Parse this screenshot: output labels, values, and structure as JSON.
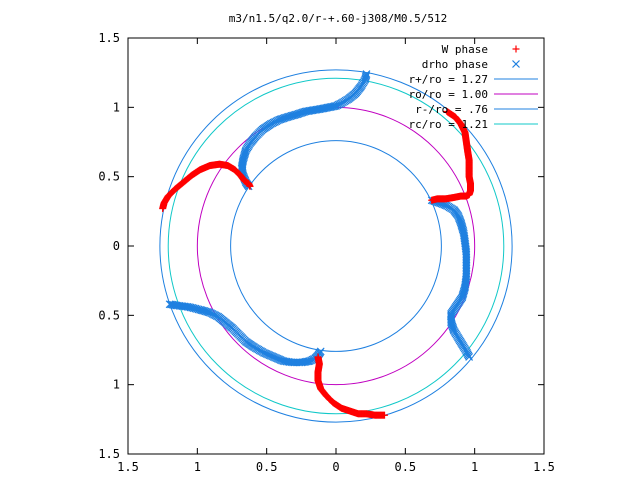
{
  "chart_data": {
    "type": "scatter",
    "title": "m3/n1.5/q2.0/r-+.60-j308/M0.5/512",
    "xlabel": "",
    "ylabel": "",
    "xlim": [
      -1.5,
      1.5
    ],
    "ylim": [
      -1.5,
      1.5
    ],
    "x_tick_labels": [
      "1.5",
      "1",
      "0.5",
      "0",
      "0.5",
      "1",
      "1.5"
    ],
    "y_tick_labels": [
      "1.5",
      "1",
      "0.5",
      "0",
      "0.5",
      "1",
      "1.5"
    ],
    "grid": false,
    "legend_position": "top-right",
    "series": [
      {
        "name": "W phase",
        "marker": "+",
        "color": "#ff0000",
        "points": [
          [
            0.8,
            0.97
          ],
          [
            0.86,
            0.93
          ],
          [
            0.9,
            0.88
          ],
          [
            0.93,
            0.82
          ],
          [
            0.94,
            0.75
          ],
          [
            0.95,
            0.68
          ],
          [
            0.96,
            0.62
          ],
          [
            0.96,
            0.56
          ],
          [
            0.96,
            0.5
          ],
          [
            0.97,
            0.45
          ],
          [
            0.97,
            0.4
          ],
          [
            0.96,
            0.37
          ],
          [
            0.94,
            0.36
          ],
          [
            0.9,
            0.36
          ],
          [
            0.85,
            0.35
          ],
          [
            0.79,
            0.34
          ],
          [
            0.73,
            0.34
          ],
          [
            0.69,
            0.33
          ],
          [
            -1.25,
            0.27
          ],
          [
            -1.24,
            0.31
          ],
          [
            -1.21,
            0.36
          ],
          [
            -1.16,
            0.41
          ],
          [
            -1.1,
            0.46
          ],
          [
            -1.04,
            0.51
          ],
          [
            -0.98,
            0.55
          ],
          [
            -0.91,
            0.58
          ],
          [
            -0.84,
            0.59
          ],
          [
            -0.78,
            0.58
          ],
          [
            -0.73,
            0.55
          ],
          [
            -0.69,
            0.51
          ],
          [
            -0.66,
            0.47
          ],
          [
            -0.63,
            0.45
          ],
          [
            -0.62,
            0.43
          ],
          [
            -0.13,
            -0.8
          ],
          [
            -0.12,
            -0.85
          ],
          [
            -0.13,
            -0.91
          ],
          [
            -0.13,
            -0.97
          ],
          [
            -0.11,
            -1.03
          ],
          [
            -0.07,
            -1.08
          ],
          [
            -0.02,
            -1.13
          ],
          [
            0.04,
            -1.17
          ],
          [
            0.1,
            -1.19
          ],
          [
            0.16,
            -1.21
          ],
          [
            0.22,
            -1.21
          ],
          [
            0.28,
            -1.22
          ],
          [
            0.35,
            -1.22
          ]
        ]
      },
      {
        "name": "drho phase",
        "marker": "x",
        "color": "#1f80e0",
        "points": [
          [
            0.22,
            1.24
          ],
          [
            0.21,
            1.2
          ],
          [
            0.18,
            1.15
          ],
          [
            0.14,
            1.1
          ],
          [
            0.09,
            1.06
          ],
          [
            0.04,
            1.03
          ],
          [
            0.0,
            1.01
          ],
          [
            -0.05,
            1.0
          ],
          [
            -0.1,
            0.99
          ],
          [
            -0.16,
            0.98
          ],
          [
            -0.22,
            0.97
          ],
          [
            -0.28,
            0.95
          ],
          [
            -0.35,
            0.93
          ],
          [
            -0.41,
            0.91
          ],
          [
            -0.47,
            0.88
          ],
          [
            -0.53,
            0.84
          ],
          [
            -0.58,
            0.79
          ],
          [
            -0.62,
            0.74
          ],
          [
            -0.65,
            0.69
          ],
          [
            -0.67,
            0.62
          ],
          [
            -0.68,
            0.56
          ],
          [
            -0.67,
            0.51
          ],
          [
            -0.65,
            0.46
          ],
          [
            -0.63,
            0.43
          ],
          [
            0.69,
            0.33
          ],
          [
            0.75,
            0.31
          ],
          [
            0.8,
            0.29
          ],
          [
            0.85,
            0.26
          ],
          [
            0.88,
            0.22
          ],
          [
            0.9,
            0.17
          ],
          [
            0.92,
            0.1
          ],
          [
            0.93,
            0.03
          ],
          [
            0.94,
            -0.05
          ],
          [
            0.94,
            -0.13
          ],
          [
            0.94,
            -0.22
          ],
          [
            0.93,
            -0.3
          ],
          [
            0.91,
            -0.37
          ],
          [
            0.87,
            -0.43
          ],
          [
            0.83,
            -0.49
          ],
          [
            0.83,
            -0.55
          ],
          [
            0.85,
            -0.61
          ],
          [
            0.88,
            -0.66
          ],
          [
            0.91,
            -0.71
          ],
          [
            0.94,
            -0.76
          ],
          [
            0.96,
            -0.8
          ],
          [
            -1.2,
            -0.42
          ],
          [
            -1.14,
            -0.43
          ],
          [
            -1.06,
            -0.44
          ],
          [
            -0.98,
            -0.46
          ],
          [
            -0.91,
            -0.48
          ],
          [
            -0.85,
            -0.51
          ],
          [
            -0.8,
            -0.55
          ],
          [
            -0.75,
            -0.59
          ],
          [
            -0.7,
            -0.64
          ],
          [
            -0.65,
            -0.69
          ],
          [
            -0.59,
            -0.73
          ],
          [
            -0.52,
            -0.77
          ],
          [
            -0.45,
            -0.8
          ],
          [
            -0.38,
            -0.83
          ],
          [
            -0.31,
            -0.84
          ],
          [
            -0.25,
            -0.84
          ],
          [
            -0.19,
            -0.83
          ],
          [
            -0.15,
            -0.81
          ],
          [
            -0.13,
            -0.79
          ],
          [
            -0.11,
            -0.76
          ]
        ]
      }
    ],
    "circles": [
      {
        "name": "r+/ro = 1.27",
        "radius": 1.27,
        "color": "#1f80e0"
      },
      {
        "name": "ro/ro = 1.00",
        "radius": 1.0,
        "color": "#c000c0"
      },
      {
        "name": "r-/ro = .76",
        "radius": 0.76,
        "color": "#1f80e0"
      },
      {
        "name": "rc/ro = 1.21",
        "radius": 1.21,
        "color": "#10c8c8"
      }
    ]
  }
}
